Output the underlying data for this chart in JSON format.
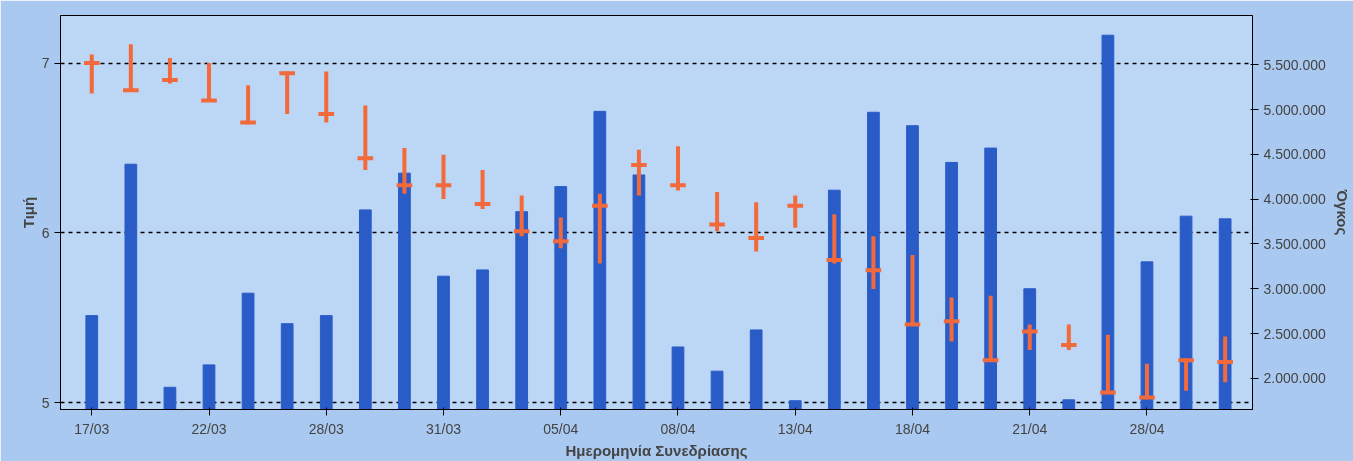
{
  "chart_data": {
    "type": "candlestick",
    "xlabel": "Ημερομηνία Συνεδρίασης",
    "ylabel": "Τιμή",
    "y2label": "Όγκος",
    "categories": [
      "17/03",
      null,
      null,
      "22/03",
      null,
      null,
      "28/03",
      null,
      null,
      "31/03",
      null,
      null,
      "05/04",
      null,
      null,
      "08/04",
      null,
      null,
      "13/04",
      null,
      null,
      "18/04",
      null,
      null,
      "21/04",
      null,
      null,
      "28/04",
      null,
      null
    ],
    "ohlc": [
      [
        7.0,
        7.05,
        6.82,
        7.0
      ],
      [
        6.84,
        7.11,
        6.83,
        6.84
      ],
      [
        6.9,
        7.03,
        6.88,
        6.9
      ],
      [
        6.78,
        7.0,
        6.77,
        6.78
      ],
      [
        6.65,
        6.87,
        6.64,
        6.65
      ],
      [
        6.94,
        6.95,
        6.7,
        6.94
      ],
      [
        6.7,
        6.95,
        6.65,
        6.7
      ],
      [
        6.44,
        6.75,
        6.37,
        6.44
      ],
      [
        6.28,
        6.5,
        6.23,
        6.28
      ],
      [
        6.28,
        6.46,
        6.2,
        6.28
      ],
      [
        6.17,
        6.37,
        6.14,
        6.17
      ],
      [
        6.01,
        6.22,
        5.98,
        6.01
      ],
      [
        5.95,
        6.09,
        5.91,
        5.95
      ],
      [
        6.16,
        6.23,
        5.82,
        6.16
      ],
      [
        6.4,
        6.49,
        6.22,
        6.4
      ],
      [
        6.28,
        6.51,
        6.25,
        6.28
      ],
      [
        6.05,
        6.24,
        6.01,
        6.05
      ],
      [
        5.97,
        6.18,
        5.89,
        5.97
      ],
      [
        6.16,
        6.22,
        6.03,
        6.16
      ],
      [
        5.84,
        6.11,
        5.82,
        5.84
      ],
      [
        5.78,
        5.98,
        5.67,
        5.78
      ],
      [
        5.46,
        5.87,
        5.46,
        5.46
      ],
      [
        5.48,
        5.62,
        5.36,
        5.48
      ],
      [
        5.25,
        5.63,
        5.25,
        5.25
      ],
      [
        5.42,
        5.46,
        5.31,
        5.42
      ],
      [
        5.34,
        5.46,
        5.31,
        5.34
      ],
      [
        5.06,
        5.4,
        5.05,
        5.06
      ],
      [
        5.03,
        5.23,
        5.02,
        5.03
      ],
      [
        5.25,
        5.26,
        5.07,
        5.25
      ],
      [
        5.24,
        5.39,
        5.12,
        5.24
      ]
    ],
    "colors": [
      "#f26a3c",
      "#f26a3c",
      "#f26a3c",
      "#f26a3c",
      "#f26a3c",
      "#f26a3c",
      "#f26a3c",
      "#f26a3c",
      "#f26a3c",
      "#f26a3c",
      "#f26a3c",
      "#f26a3c",
      "#f26a3c",
      "#f26a3c",
      "#f26a3c",
      "#f26a3c",
      "#f26a3c",
      "#f26a3c",
      "#f26a3c",
      "#f26a3c",
      "#f26a3c",
      "#f26a3c",
      "#f26a3c",
      "#f26a3c",
      "#f26a3c",
      "#f26a3c",
      "#f26a3c",
      "#f26a3c",
      "#f26a3c",
      "#f26a3c"
    ],
    "series": [
      {
        "type": "bar",
        "axis": "y2",
        "color": "#2a5cc8",
        "values": [
          2700000,
          4390000,
          1900000,
          2150000,
          2950000,
          2610000,
          2700000,
          3880000,
          4290000,
          3140000,
          3210000,
          3860000,
          4140000,
          4980000,
          4270000,
          2350000,
          2080000,
          2540000,
          1750000,
          4100000,
          4970000,
          4820000,
          4410000,
          4570000,
          3000000,
          1760000,
          5830000,
          3300000,
          3810000,
          3780000
        ]
      }
    ],
    "ylim": [
      4.96,
      7.28
    ],
    "yticks": [
      5,
      6,
      7
    ],
    "y2lim": [
      1652000,
      6050000
    ],
    "y2ticks": [
      {
        "value": 2000000,
        "label": "2.000.000"
      },
      {
        "value": 2500000,
        "label": "2.500.000"
      },
      {
        "value": 3000000,
        "label": "3.000.000"
      },
      {
        "value": 3500000,
        "label": "3.500.000"
      },
      {
        "value": 4000000,
        "label": "4.000.000"
      },
      {
        "value": 4500000,
        "label": "4.500.000"
      },
      {
        "value": 5000000,
        "label": "5.000.000"
      },
      {
        "value": 5500000,
        "label": "5.500.000"
      }
    ],
    "grid": "y"
  }
}
